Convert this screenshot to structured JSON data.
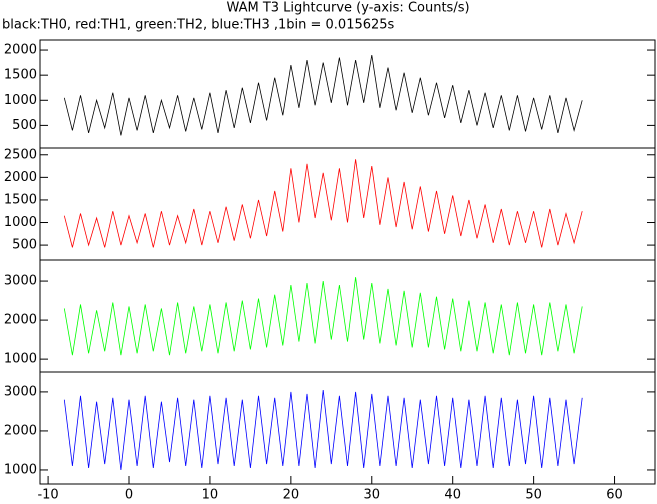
{
  "chart_data": [
    {
      "type": "line",
      "title": "WAM T3 Lightcurve (y-axis: Counts/s)",
      "subtitle": "black:TH0, red:TH1, green:TH2, blue:TH3 ,1bin = 0.015625s",
      "color": "#000000",
      "xlim": [
        -11,
        65
      ],
      "ylim": [
        50,
        2200
      ],
      "yticks": [
        500,
        1000,
        1500,
        2000
      ],
      "x": [
        -8,
        -7,
        -6,
        -5,
        -4,
        -3,
        -2,
        -1,
        0,
        1,
        2,
        3,
        4,
        5,
        6,
        7,
        8,
        9,
        10,
        11,
        12,
        13,
        14,
        15,
        16,
        17,
        18,
        19,
        20,
        21,
        22,
        23,
        24,
        25,
        26,
        27,
        28,
        29,
        30,
        31,
        32,
        33,
        34,
        35,
        36,
        37,
        38,
        39,
        40,
        41,
        42,
        43,
        44,
        45,
        46,
        47,
        48,
        49,
        50,
        51,
        52,
        53,
        54,
        55,
        56
      ],
      "values": [
        1050,
        400,
        1100,
        350,
        1000,
        450,
        1150,
        300,
        1050,
        400,
        1100,
        350,
        1000,
        450,
        1100,
        380,
        1050,
        420,
        1150,
        350,
        1200,
        450,
        1250,
        550,
        1350,
        600,
        1450,
        700,
        1700,
        850,
        1800,
        900,
        1750,
        950,
        1850,
        900,
        1800,
        950,
        1900,
        850,
        1650,
        800,
        1550,
        750,
        1450,
        700,
        1350,
        650,
        1300,
        550,
        1200,
        500,
        1150,
        450,
        1100,
        400,
        1100,
        380,
        1050,
        420,
        1100,
        350,
        1050,
        400,
        1000
      ]
    },
    {
      "type": "line",
      "color": "#ff0000",
      "xlim": [
        -11,
        65
      ],
      "ylim": [
        170,
        2650
      ],
      "yticks": [
        500,
        1000,
        1500,
        2000,
        2500
      ],
      "x": [
        -8,
        -7,
        -6,
        -5,
        -4,
        -3,
        -2,
        -1,
        0,
        1,
        2,
        3,
        4,
        5,
        6,
        7,
        8,
        9,
        10,
        11,
        12,
        13,
        14,
        15,
        16,
        17,
        18,
        19,
        20,
        21,
        22,
        23,
        24,
        25,
        26,
        27,
        28,
        29,
        30,
        31,
        32,
        33,
        34,
        35,
        36,
        37,
        38,
        39,
        40,
        41,
        42,
        43,
        44,
        45,
        46,
        47,
        48,
        49,
        50,
        51,
        52,
        53,
        54,
        55,
        56
      ],
      "values": [
        1150,
        450,
        1200,
        500,
        1100,
        450,
        1250,
        500,
        1150,
        550,
        1200,
        450,
        1250,
        500,
        1150,
        550,
        1300,
        500,
        1250,
        550,
        1350,
        600,
        1400,
        650,
        1500,
        700,
        1700,
        800,
        2200,
        1000,
        2300,
        1100,
        2100,
        1050,
        2200,
        1000,
        2400,
        1100,
        2250,
        950,
        2000,
        900,
        1900,
        850,
        1800,
        800,
        1700,
        750,
        1600,
        700,
        1500,
        650,
        1400,
        550,
        1300,
        500,
        1250,
        550,
        1250,
        450,
        1300,
        500,
        1200,
        550,
        1250
      ]
    },
    {
      "type": "line",
      "color": "#00ff00",
      "xlim": [
        -11,
        65
      ],
      "ylim": [
        670,
        3540
      ],
      "yticks": [
        1000,
        2000,
        3000
      ],
      "x": [
        -8,
        -7,
        -6,
        -5,
        -4,
        -3,
        -2,
        -1,
        0,
        1,
        2,
        3,
        4,
        5,
        6,
        7,
        8,
        9,
        10,
        11,
        12,
        13,
        14,
        15,
        16,
        17,
        18,
        19,
        20,
        21,
        22,
        23,
        24,
        25,
        26,
        27,
        28,
        29,
        30,
        31,
        32,
        33,
        34,
        35,
        36,
        37,
        38,
        39,
        40,
        41,
        42,
        43,
        44,
        45,
        46,
        47,
        48,
        49,
        50,
        51,
        52,
        53,
        54,
        55,
        56
      ],
      "values": [
        2300,
        1100,
        2400,
        1150,
        2250,
        1200,
        2450,
        1100,
        2350,
        1150,
        2400,
        1200,
        2300,
        1100,
        2450,
        1150,
        2350,
        1200,
        2400,
        1150,
        2450,
        1200,
        2500,
        1250,
        2550,
        1300,
        2650,
        1350,
        2900,
        1450,
        2950,
        1400,
        3000,
        1500,
        2900,
        1450,
        3100,
        1500,
        2950,
        1400,
        2800,
        1350,
        2750,
        1300,
        2700,
        1300,
        2600,
        1250,
        2550,
        1200,
        2500,
        1200,
        2450,
        1150,
        2400,
        1100,
        2450,
        1150,
        2400,
        1100,
        2450,
        1200,
        2400,
        1150,
        2350
      ]
    },
    {
      "type": "line",
      "color": "#0000ff",
      "xlim": [
        -11,
        65
      ],
      "ylim": [
        640,
        3510
      ],
      "yticks": [
        1000,
        2000,
        3000
      ],
      "xticks": [
        -10,
        0,
        10,
        20,
        30,
        40,
        50,
        60
      ],
      "x": [
        -8,
        -7,
        -6,
        -5,
        -4,
        -3,
        -2,
        -1,
        0,
        1,
        2,
        3,
        4,
        5,
        6,
        7,
        8,
        9,
        10,
        11,
        12,
        13,
        14,
        15,
        16,
        17,
        18,
        19,
        20,
        21,
        22,
        23,
        24,
        25,
        26,
        27,
        28,
        29,
        30,
        31,
        32,
        33,
        34,
        35,
        36,
        37,
        38,
        39,
        40,
        41,
        42,
        43,
        44,
        45,
        46,
        47,
        48,
        49,
        50,
        51,
        52,
        53,
        54,
        55,
        56
      ],
      "values": [
        2800,
        1100,
        2900,
        1050,
        2750,
        1150,
        2850,
        1000,
        2800,
        1100,
        2900,
        1050,
        2750,
        1200,
        2850,
        1100,
        2800,
        1050,
        2900,
        1150,
        2850,
        1100,
        2800,
        1050,
        2900,
        1150,
        2850,
        1100,
        3000,
        1100,
        2950,
        1050,
        3050,
        1150,
        2900,
        1100,
        3000,
        1050,
        2950,
        1100,
        2900,
        1100,
        2850,
        1050,
        2800,
        1150,
        2900,
        1100,
        2850,
        1050,
        2800,
        1100,
        2900,
        1050,
        2850,
        1100,
        2800,
        1150,
        2900,
        1050,
        2850,
        1100,
        2800,
        1150,
        2850
      ]
    }
  ]
}
